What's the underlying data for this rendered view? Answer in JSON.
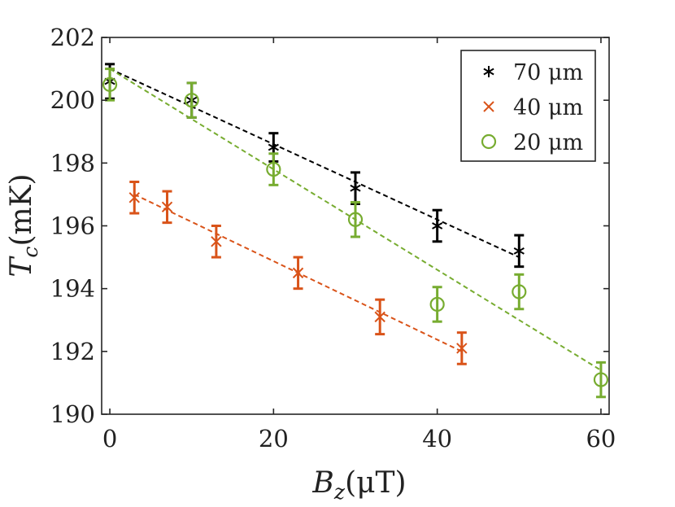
{
  "chart_data": {
    "type": "scatter",
    "title": "",
    "xlabel": "B_z(μT)",
    "ylabel": "T_c(mK)",
    "xlim": [
      -1,
      61
    ],
    "ylim": [
      190,
      202
    ],
    "xticks": [
      0,
      20,
      40,
      60
    ],
    "yticks": [
      190,
      192,
      194,
      196,
      198,
      200,
      202
    ],
    "grid": false,
    "legend_position": "top-right",
    "series": [
      {
        "name": "70 μm",
        "marker": "asterisk",
        "color": "#000000",
        "x": [
          0,
          10,
          20,
          30,
          40,
          50
        ],
        "y": [
          200.6,
          200.0,
          198.5,
          197.2,
          196.0,
          195.2
        ],
        "err": [
          0.55,
          0.55,
          0.45,
          0.5,
          0.5,
          0.5
        ],
        "fit": {
          "x": [
            0,
            50
          ],
          "y": [
            201.0,
            195.0
          ]
        }
      },
      {
        "name": "40 μm",
        "marker": "x",
        "color": "#d95319",
        "x": [
          3,
          7,
          13,
          23,
          33,
          43
        ],
        "y": [
          196.9,
          196.6,
          195.5,
          194.5,
          193.1,
          192.1
        ],
        "err": [
          0.5,
          0.5,
          0.5,
          0.5,
          0.55,
          0.5
        ],
        "fit": {
          "x": [
            3,
            43
          ],
          "y": [
            197.0,
            192.0
          ]
        }
      },
      {
        "name": "20 μm",
        "marker": "circle",
        "color": "#77ac30",
        "x": [
          0,
          10,
          20,
          30,
          40,
          50,
          60
        ],
        "y": [
          200.5,
          200.0,
          197.8,
          196.2,
          193.5,
          193.9,
          191.1
        ],
        "err": [
          0.5,
          0.55,
          0.5,
          0.55,
          0.55,
          0.55,
          0.55
        ],
        "fit": {
          "x": [
            0,
            60
          ],
          "y": [
            201.0,
            191.4
          ]
        }
      }
    ]
  },
  "labels": {
    "ylabel_main": "T",
    "ylabel_sub": "c",
    "ylabel_unit": "(mK)",
    "xlabel_main": "B",
    "xlabel_sub": "z",
    "xlabel_unit": "(μT)"
  }
}
